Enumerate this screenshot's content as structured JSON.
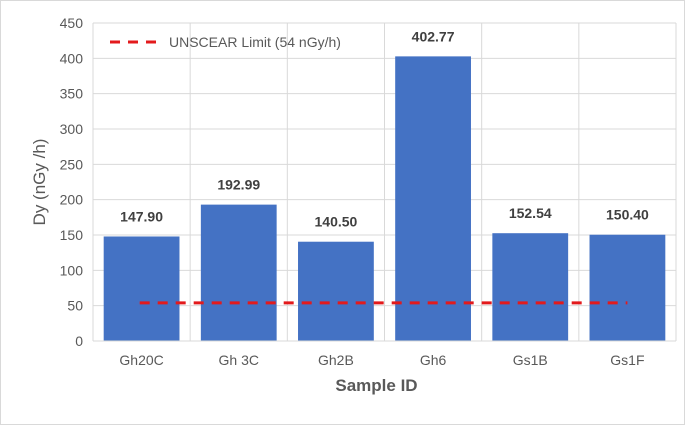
{
  "chart_data": {
    "type": "bar",
    "categories": [
      "Gh20C",
      "Gh 3C",
      "Gh2B",
      "Gh6",
      "Gs1B",
      "Gs1F"
    ],
    "values": [
      147.9,
      192.99,
      140.5,
      402.77,
      152.54,
      150.4
    ],
    "data_labels": [
      "147.90",
      "192.99",
      "140.50",
      "402.77",
      "152.54",
      "150.40"
    ],
    "title": "",
    "xlabel": "Sample ID",
    "ylabel": "Dy (nGy /h)",
    "ylim": [
      0,
      450
    ],
    "yticks": [
      "0",
      "50",
      "100",
      "150",
      "200",
      "250",
      "300",
      "350",
      "400",
      "450"
    ],
    "grid": true,
    "bar_color": "#4472C4",
    "reference_line": {
      "label": "UNSCEAR Limit (54 nGy/h)",
      "value": 54,
      "color": "#E31A1C",
      "style": "dashed"
    },
    "legend_position": "top-left"
  }
}
